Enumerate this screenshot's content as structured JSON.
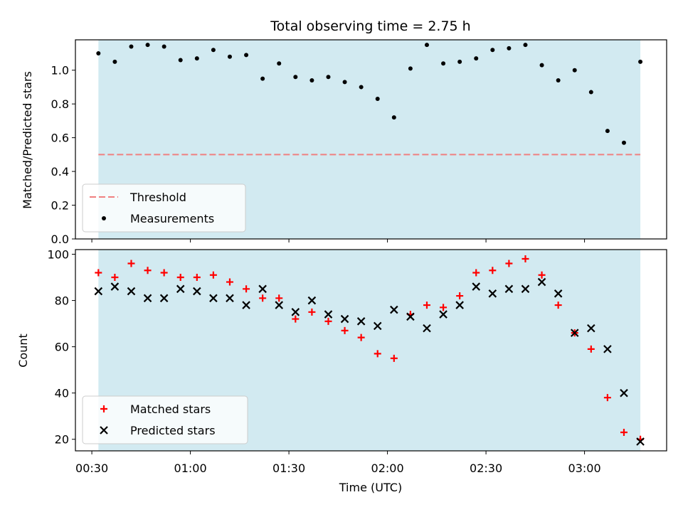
{
  "chart_data": {
    "type": "scatter",
    "title": "Total observing time = 2.75 h",
    "xlabel": "Time (UTC)",
    "x_ticks": [
      "00:30",
      "01:00",
      "01:30",
      "02:00",
      "02:30",
      "03:00"
    ],
    "time_range": [
      "00:25",
      "03:25"
    ],
    "shaded_range": [
      "00:32",
      "03:17"
    ],
    "shade_color": "#add8e6",
    "times": [
      "00:32",
      "00:37",
      "00:42",
      "00:47",
      "00:52",
      "00:57",
      "01:02",
      "01:07",
      "01:12",
      "01:17",
      "01:22",
      "01:27",
      "01:32",
      "01:37",
      "01:42",
      "01:47",
      "01:52",
      "01:57",
      "02:02",
      "02:07",
      "02:12",
      "02:17",
      "02:22",
      "02:27",
      "02:32",
      "02:37",
      "02:42",
      "02:47",
      "02:52",
      "02:57",
      "03:02",
      "03:07",
      "03:12",
      "03:17"
    ],
    "panels": [
      {
        "ylabel": "Matched/Predicted stars",
        "ylim": [
          0,
          1.18
        ],
        "yticks": [
          "0.0",
          "0.2",
          "0.4",
          "0.6",
          "0.8",
          "1.0"
        ],
        "threshold": 0.5,
        "threshold_color": "#f08080",
        "series": [
          {
            "name": "Measurements",
            "marker": "dot",
            "color": "#000000",
            "values": [
              1.1,
              1.05,
              1.14,
              1.15,
              1.14,
              1.06,
              1.07,
              1.12,
              1.08,
              1.09,
              0.95,
              1.04,
              0.96,
              0.94,
              0.96,
              0.93,
              0.9,
              0.83,
              0.72,
              1.01,
              1.15,
              1.04,
              1.05,
              1.07,
              1.12,
              1.13,
              1.15,
              1.03,
              0.94,
              1.0,
              0.87,
              0.64,
              0.57,
              1.05
            ]
          }
        ],
        "legend": [
          "Threshold",
          "Measurements"
        ],
        "legend_position": "lower-left"
      },
      {
        "ylabel": "Count",
        "ylim": [
          15,
          102
        ],
        "yticks": [
          "20",
          "40",
          "60",
          "80",
          "100"
        ],
        "series": [
          {
            "name": "Matched stars",
            "marker": "plus",
            "color": "#ff0000",
            "values": [
              92,
              90,
              96,
              93,
              92,
              90,
              90,
              91,
              88,
              85,
              81,
              81,
              72,
              75,
              71,
              67,
              64,
              57,
              55,
              74,
              78,
              77,
              82,
              92,
              93,
              96,
              98,
              91,
              78,
              66,
              59,
              38,
              23,
              20
            ]
          },
          {
            "name": "Predicted stars",
            "marker": "x",
            "color": "#000000",
            "values": [
              84,
              86,
              84,
              81,
              81,
              85,
              84,
              81,
              81,
              78,
              85,
              78,
              75,
              80,
              74,
              72,
              71,
              69,
              76,
              73,
              68,
              74,
              78,
              86,
              83,
              85,
              85,
              88,
              83,
              66,
              68,
              59,
              40,
              19
            ]
          }
        ],
        "legend": [
          "Matched stars",
          "Predicted stars"
        ],
        "legend_position": "lower-left"
      }
    ]
  }
}
